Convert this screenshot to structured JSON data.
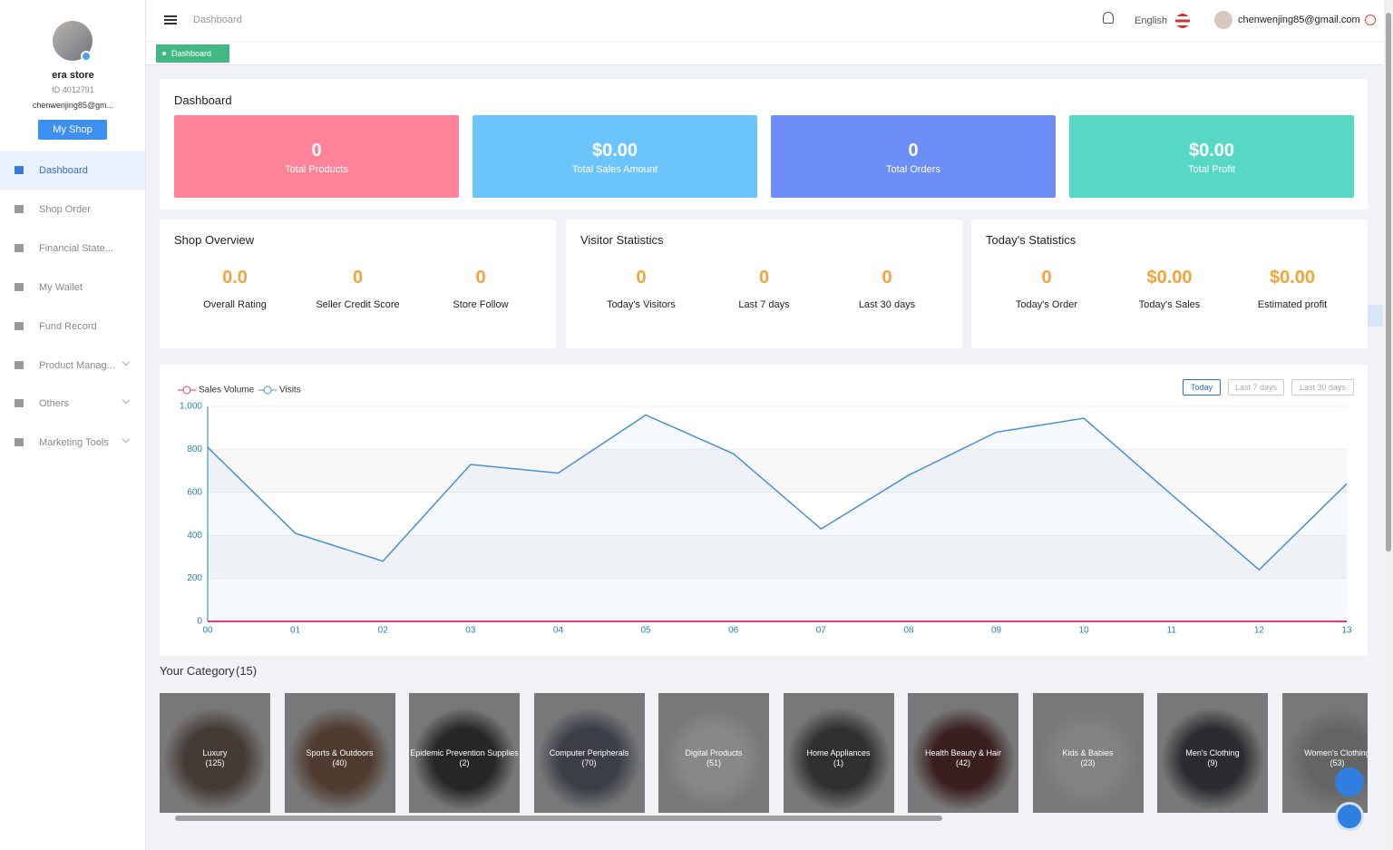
{
  "sidebar": {
    "store_name": "era store",
    "store_id": "ID 4012791",
    "email": "chenwenjing85@gm...",
    "button": "My Shop",
    "menu": [
      "Dashboard",
      "Shop Order",
      "Financial State...",
      "My Wallet",
      "Fund Record",
      "Product Manag...",
      "Others",
      "Marketing Tools"
    ]
  },
  "header": {
    "breadcrumb": "Dashboard",
    "language": "English",
    "email": "chenwenjing85@gmail.com",
    "tab": "Dashboard"
  },
  "summary": {
    "title": "Dashboard",
    "cards": [
      {
        "value": "0",
        "label": "Total Products"
      },
      {
        "value": "$0.00",
        "label": "Total Sales Amount"
      },
      {
        "value": "0",
        "label": "Total Orders"
      },
      {
        "value": "$0.00",
        "label": "Total Profit"
      }
    ]
  },
  "panels": [
    {
      "title": "Shop Overview",
      "stats": [
        {
          "value": "0.0",
          "label": "Overall Rating"
        },
        {
          "value": "0",
          "label": "Seller Credit Score"
        },
        {
          "value": "0",
          "label": "Store Follow"
        }
      ]
    },
    {
      "title": "Visitor Statistics",
      "stats": [
        {
          "value": "0",
          "label": "Today's Visitors"
        },
        {
          "value": "0",
          "label": "Last 7 days"
        },
        {
          "value": "0",
          "label": "Last 30 days"
        }
      ]
    },
    {
      "title": "Today's Statistics",
      "stats": [
        {
          "value": "0",
          "label": "Today's Order"
        },
        {
          "value": "$0.00",
          "label": "Today's Sales"
        },
        {
          "value": "$0.00",
          "label": "Estimated profit"
        }
      ]
    }
  ],
  "chart_controls": [
    "Today",
    "Last 7 days",
    "Last 30 days"
  ],
  "chart_data": {
    "type": "line",
    "categories": [
      "00",
      "01",
      "02",
      "03",
      "04",
      "05",
      "06",
      "07",
      "08",
      "09",
      "10",
      "11",
      "12",
      "13"
    ],
    "series": [
      {
        "name": "Sales Volume",
        "color": "#e23a78",
        "values": [
          0,
          0,
          0,
          0,
          0,
          0,
          0,
          0,
          0,
          0,
          0,
          0,
          0,
          0
        ]
      },
      {
        "name": "Visits",
        "color": "#4a8fd4",
        "values": [
          810,
          410,
          280,
          730,
          690,
          960,
          780,
          430,
          680,
          880,
          945,
          590,
          240,
          640
        ]
      }
    ],
    "ylim": [
      0,
      1000
    ],
    "yticks": [
      0,
      200,
      400,
      600,
      800,
      {
        "value": 1000,
        "label": "1,000"
      }
    ],
    "grid": true
  },
  "category": {
    "title": "Your Category",
    "count": "(15)",
    "items": [
      {
        "name": "Luxury",
        "count": "(125)"
      },
      {
        "name": "Sports & Outdoors",
        "count": "(40)"
      },
      {
        "name": "Epidemic Prevention Supplies",
        "count": "(2)"
      },
      {
        "name": "Computer Peripherals",
        "count": "(70)"
      },
      {
        "name": "Digital Products",
        "count": "(51)"
      },
      {
        "name": "Home Appliances",
        "count": "(1)"
      },
      {
        "name": "Health Beauty & Hair",
        "count": "(42)"
      },
      {
        "name": "Kids & Babies",
        "count": "(23)"
      },
      {
        "name": "Men's Clothing",
        "count": "(9)"
      },
      {
        "name": "Women's Clothing",
        "count": "(53)"
      }
    ]
  }
}
